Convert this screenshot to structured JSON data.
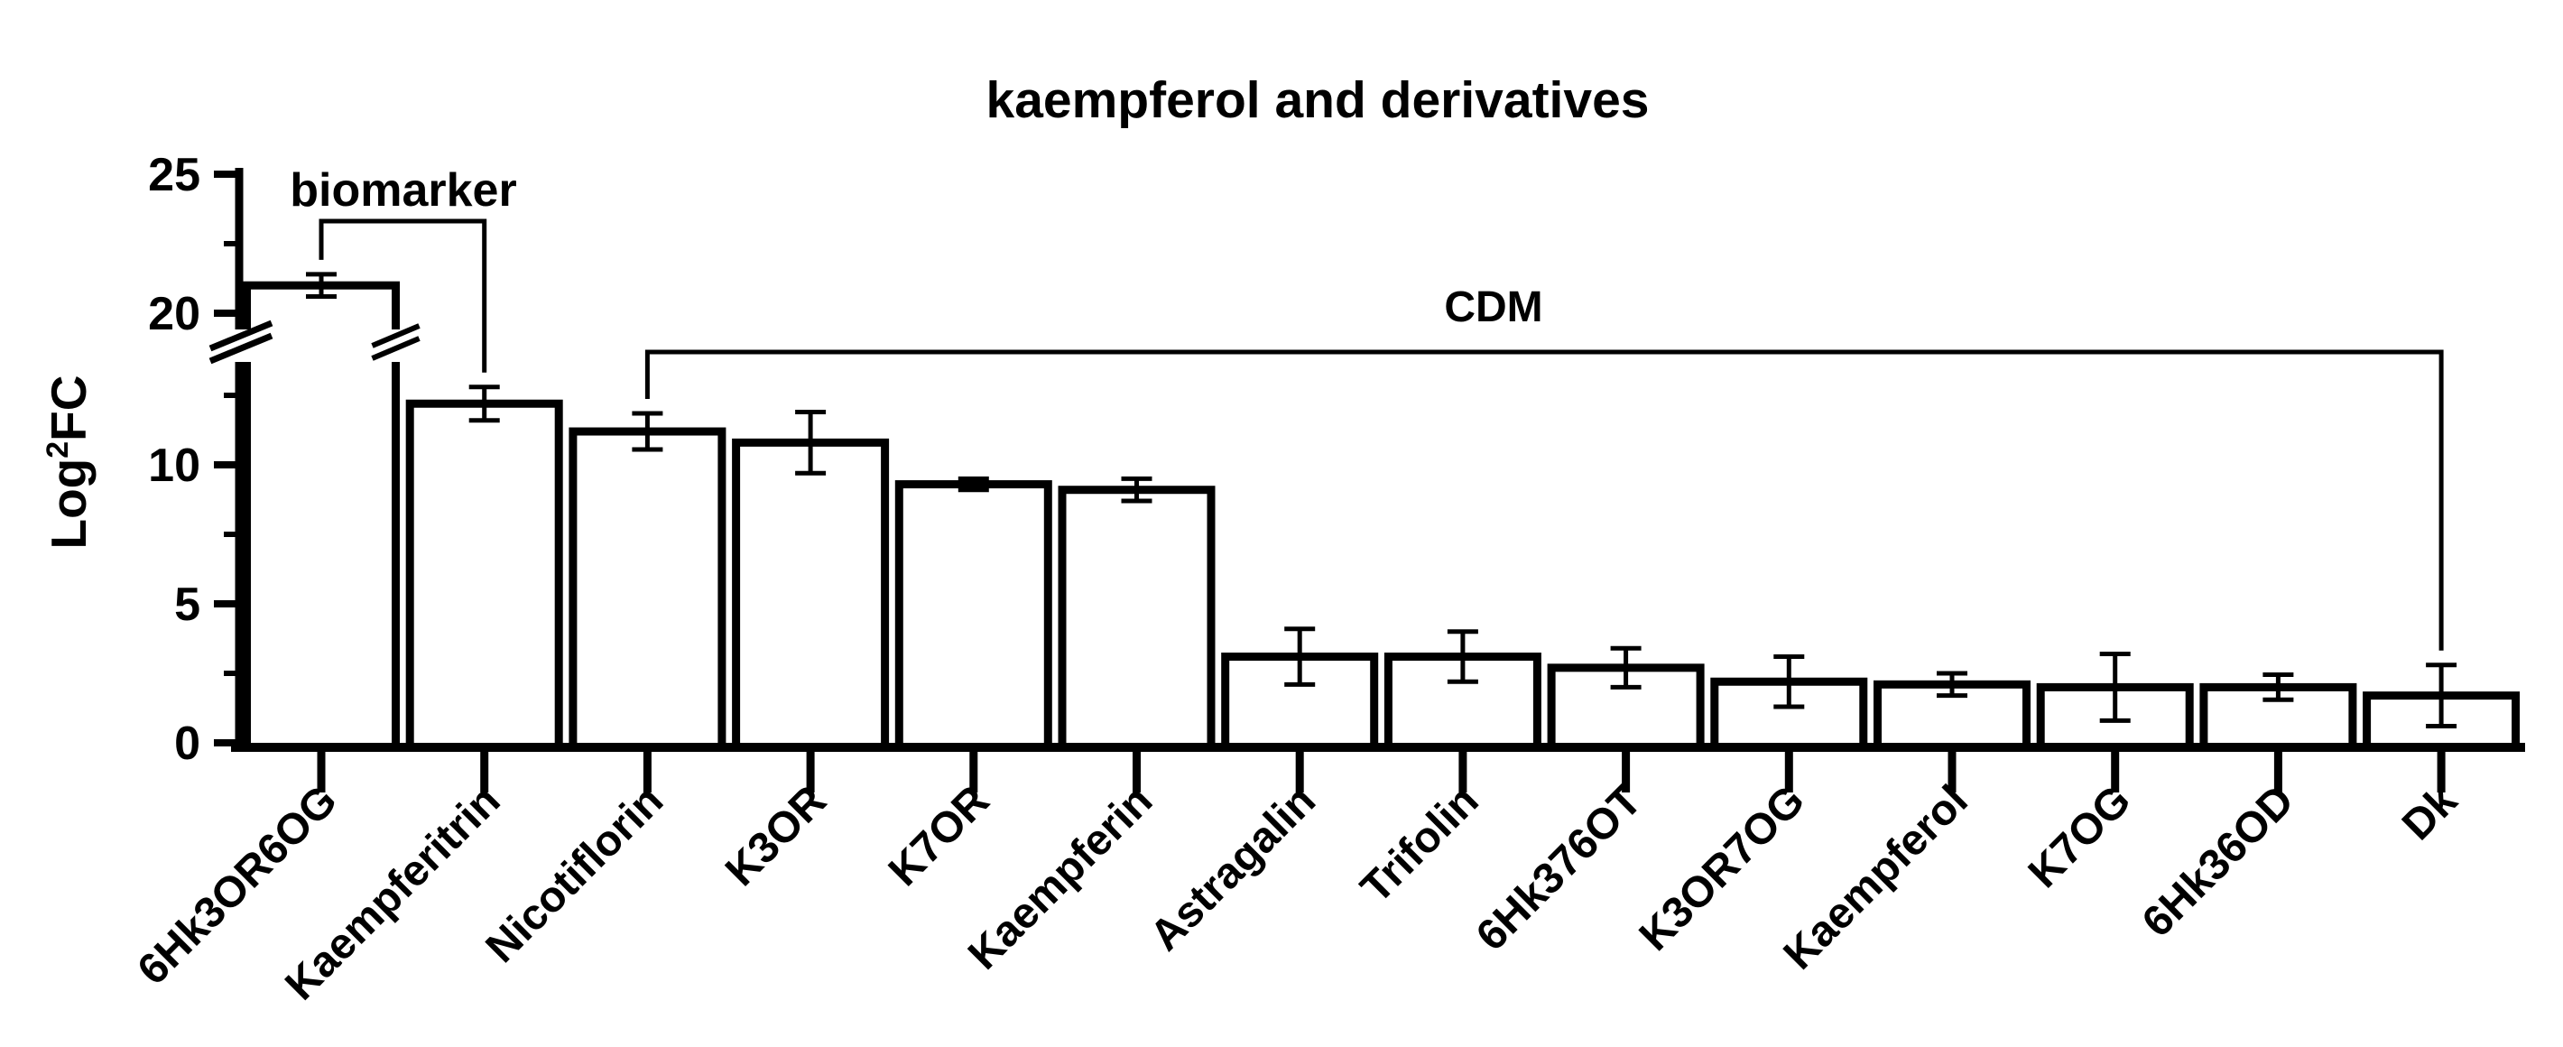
{
  "title": "kaempferol and derivatives",
  "colors": {
    "foreground": "#000000",
    "background": "#ffffff"
  },
  "chart_data": {
    "type": "bar",
    "title": "kaempferol and derivatives",
    "ylabel": "Log2FC",
    "ylabel_parts": {
      "base": "Log",
      "sup": "2",
      "rest": "FC"
    },
    "categories": [
      "6Hk3OR6OG",
      "Kaempferitrin",
      "Nicotiflorin",
      "K3OR",
      "K7OR",
      "Kaempferin",
      "Astragalin",
      "Trifolin",
      "6Hk376OT",
      "K3OR7OG",
      "Kaempferol",
      "K7OG",
      "6Hk36OD",
      "Dk"
    ],
    "values": [
      21.0,
      12.2,
      11.2,
      10.8,
      9.3,
      9.1,
      3.1,
      3.1,
      2.7,
      2.2,
      2.1,
      2.0,
      2.0,
      1.7
    ],
    "errors": [
      0.4,
      0.6,
      0.65,
      1.1,
      0.2,
      0.4,
      1.0,
      0.9,
      0.7,
      0.9,
      0.4,
      1.2,
      0.45,
      1.1
    ],
    "bar_fill": "#ffffff",
    "bar_stroke": "#000000",
    "ylim": [
      0,
      25.3
    ],
    "yticks_major": [
      0,
      5,
      10,
      20,
      25
    ],
    "yticks_minor": [
      2.5,
      7.5,
      12.5,
      22.5
    ],
    "y_axis_break": {
      "lower": 13.8,
      "upper": 19.3
    },
    "grid": false,
    "legend": null,
    "error_bars": true,
    "annotations": [
      {
        "label": "biomarker",
        "type": "bracket",
        "from_category": "6Hk3OR6OG",
        "to_category": "Kaempferitrin"
      },
      {
        "label": "CDM",
        "type": "bracket",
        "from_category": "Nicotiflorin",
        "to_category": "Dk"
      }
    ]
  }
}
